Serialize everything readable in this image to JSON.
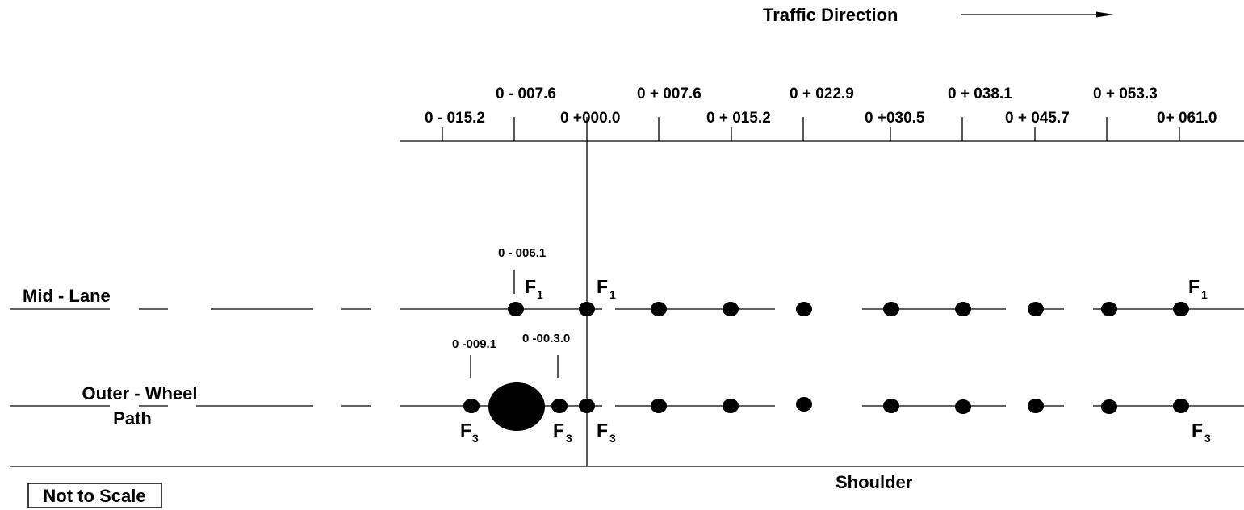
{
  "traffic": {
    "label": "Traffic Direction",
    "arrow_icon": "right-arrow-icon"
  },
  "stations_upper": [
    "0 - 007.6",
    "0 + 007.6",
    "0 + 022.9",
    "0 + 038.1",
    "0 + 053.3"
  ],
  "stations_lower": [
    "0 - 015.2",
    "0 +000.0",
    "0 + 015.2",
    "0 +030.5",
    "0 + 045.7",
    "0+ 061.0"
  ],
  "lanes": {
    "mid": "Mid - Lane",
    "outer_line1": "Outer - Wheel",
    "outer_line2": "Path"
  },
  "drop_labels": {
    "mid": "0 - 006.1",
    "outer_left": "0 -009.1",
    "outer_right": "0 -00.3.0"
  },
  "fwd": {
    "f1_main": "F",
    "f1_sub": "1",
    "f3_main": "F",
    "f3_sub": "3"
  },
  "shoulder": "Shoulder",
  "note": "Not to Scale"
}
